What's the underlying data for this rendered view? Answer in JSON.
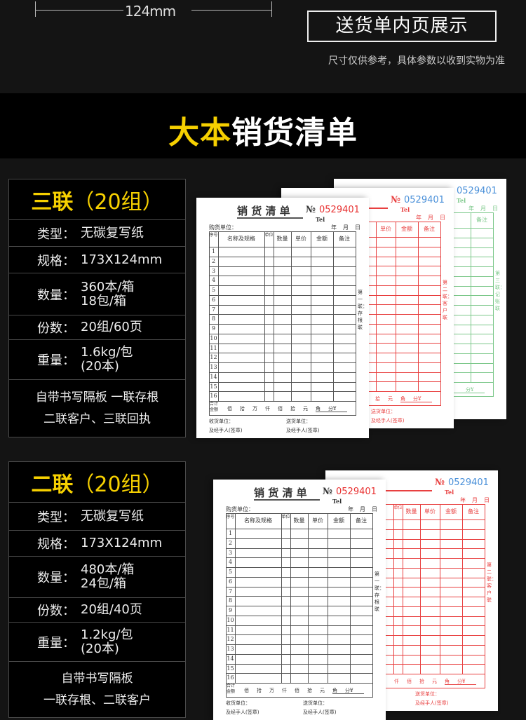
{
  "top": {
    "dimension": "124mm",
    "inner_page_label": "送货单内页展示",
    "note": "尺寸仅供参考，具体参数以收到实物为准"
  },
  "band": {
    "title_highlight": "大本",
    "title_rest": "销货清单"
  },
  "colors": {
    "accent": "#f6d000",
    "background": "#141414",
    "black_form": "#555555",
    "red_form": "#e84040",
    "green_form": "#7cc88a",
    "number_red": "#e83030",
    "number_blue": "#4a90d9"
  },
  "sections": [
    {
      "title_main": "三联",
      "title_sub": "（20组）",
      "specs": [
        {
          "k": "类型：",
          "v": "无碳复写纸"
        },
        {
          "k": "规格：",
          "v": "173X124mm"
        },
        {
          "k": "数量：",
          "v": "360本/箱\n18包/箱"
        },
        {
          "k": "份数：",
          "v": "20组/60页"
        },
        {
          "k": "重量：",
          "v": "1.6kg/包\n(20本)"
        }
      ],
      "note": [
        "自带书写隔板  一联存根",
        "二联客户、三联回执"
      ]
    },
    {
      "title_main": "二联",
      "title_sub": "（20组）",
      "specs": [
        {
          "k": "类型：",
          "v": "无碳复写纸"
        },
        {
          "k": "规格：",
          "v": "173X124mm"
        },
        {
          "k": "数量：",
          "v": "480本/箱\n24包/箱"
        },
        {
          "k": "份数：",
          "v": "20组/40页"
        },
        {
          "k": "重量：",
          "v": "1.2kg/包\n(20本)"
        }
      ],
      "note": [
        "自带书写隔板",
        "一联存根、二联客户"
      ]
    }
  ],
  "form": {
    "title": "销 货 清 单",
    "no_prefix": "№",
    "number": "0529401",
    "tel": "Tel",
    "buyer": "购货单位：",
    "date": [
      "年",
      "月",
      "日"
    ],
    "columns": [
      "序号",
      "名称及规格",
      "单位",
      "数量",
      "单价",
      "金额",
      "备注"
    ],
    "rows": [
      "1",
      "2",
      "3",
      "4",
      "5",
      "6",
      "7",
      "8",
      "9",
      "10",
      "11",
      "12",
      "13",
      "14",
      "15",
      "16"
    ],
    "total_label": "合计金额",
    "total_units": [
      "佰",
      "拾",
      "万",
      "仟",
      "佰",
      "拾",
      "元",
      "角",
      "分¥"
    ],
    "receiver": "收货单位：",
    "sender": "送货单位：",
    "handler": "及经手人(签章)",
    "copies": [
      "第一联：存根联",
      "第二联：客户联",
      "第三联：记账联"
    ]
  }
}
